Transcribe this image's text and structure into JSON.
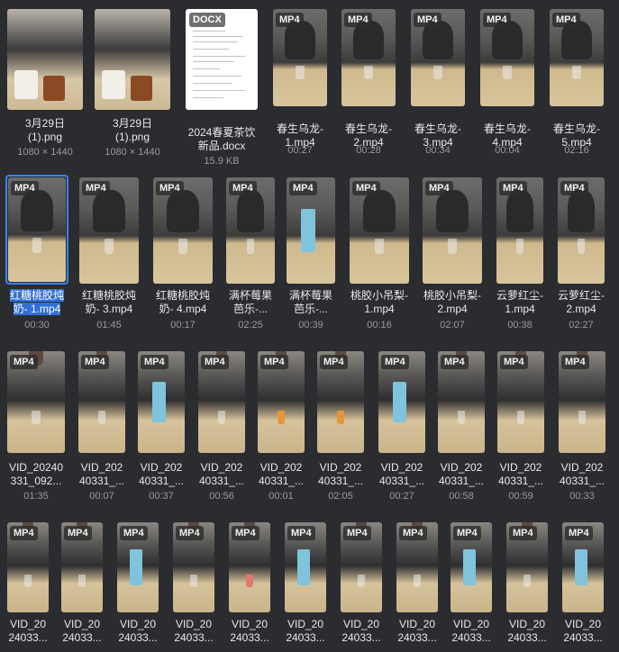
{
  "row1": [
    {
      "kind": "png",
      "name1": "3月29日",
      "name2": "(1).png",
      "meta": "1080 × 1440"
    },
    {
      "kind": "png",
      "name1": "3月29日",
      "name2": "(1).png",
      "meta": "1080 × 1440"
    },
    {
      "kind": "docx",
      "badge": "DOCX",
      "name1": "2024春夏茶饮",
      "name2": "新品.docx",
      "meta": "15.9 KB"
    },
    {
      "kind": "mp4",
      "badge": "MP4",
      "name1": "春生乌龙-",
      "name2": "1.mp4",
      "meta": "00:27"
    },
    {
      "kind": "mp4",
      "badge": "MP4",
      "name1": "春生乌龙-",
      "name2": "2.mp4",
      "meta": "00:28"
    },
    {
      "kind": "mp4",
      "badge": "MP4",
      "name1": "春生乌龙-",
      "name2": "3.mp4",
      "meta": "00:34"
    },
    {
      "kind": "mp4",
      "badge": "MP4",
      "name1": "春生乌龙-",
      "name2": "4.mp4",
      "meta": "00:04"
    },
    {
      "kind": "mp4",
      "badge": "MP4",
      "name1": "春生乌龙-",
      "name2": "5.mp4",
      "meta": "02:16"
    }
  ],
  "row2": [
    {
      "badge": "MP4",
      "name1": "红糖桃胶炖",
      "name2": "奶- 1.mp4",
      "meta": "00:30",
      "selected": true
    },
    {
      "badge": "MP4",
      "name1": "红糖桃胶炖",
      "name2": "奶- 3.mp4",
      "meta": "01:45"
    },
    {
      "badge": "MP4",
      "name1": "红糖桃胶炖",
      "name2": "奶- 4.mp4",
      "meta": "00:17"
    },
    {
      "badge": "MP4",
      "name1": "满杯莓果",
      "name2": "芭乐-...",
      "meta": "02:25"
    },
    {
      "badge": "MP4",
      "name1": "满杯莓果",
      "name2": "芭乐-...",
      "meta": "00:39"
    },
    {
      "badge": "MP4",
      "name1": "桃胶小吊梨-",
      "name2": "1.mp4",
      "meta": "00:16"
    },
    {
      "badge": "MP4",
      "name1": "桃胶小吊梨-",
      "name2": "2.mp4",
      "meta": "02:07"
    },
    {
      "badge": "MP4",
      "name1": "云萝红尘-",
      "name2": "1.mp4",
      "meta": "00:38"
    },
    {
      "badge": "MP4",
      "name1": "云萝红尘-",
      "name2": "2.mp4",
      "meta": "02:27"
    }
  ],
  "row3": [
    {
      "badge": "MP4",
      "name1": "VID_20240",
      "name2": "331_092...",
      "meta": "01:35"
    },
    {
      "badge": "MP4",
      "name1": "VID_202",
      "name2": "40331_...",
      "meta": "00:07"
    },
    {
      "badge": "MP4",
      "name1": "VID_202",
      "name2": "40331_...",
      "meta": "00:37"
    },
    {
      "badge": "MP4",
      "name1": "VID_202",
      "name2": "40331_...",
      "meta": "00:56"
    },
    {
      "badge": "MP4",
      "name1": "VID_202",
      "name2": "40331_...",
      "meta": "00:01"
    },
    {
      "badge": "MP4",
      "name1": "VID_202",
      "name2": "40331_...",
      "meta": "02:05"
    },
    {
      "badge": "MP4",
      "name1": "VID_202",
      "name2": "40331_...",
      "meta": "00:27"
    },
    {
      "badge": "MP4",
      "name1": "VID_202",
      "name2": "40331_...",
      "meta": "00:58"
    },
    {
      "badge": "MP4",
      "name1": "VID_202",
      "name2": "40331_...",
      "meta": "00:59"
    },
    {
      "badge": "MP4",
      "name1": "VID_202",
      "name2": "40331_...",
      "meta": "00:33"
    }
  ],
  "row4": [
    {
      "badge": "MP4",
      "name1": "VID_20",
      "name2": "24033..."
    },
    {
      "badge": "MP4",
      "name1": "VID_20",
      "name2": "24033..."
    },
    {
      "badge": "MP4",
      "name1": "VID_20",
      "name2": "24033..."
    },
    {
      "badge": "MP4",
      "name1": "VID_20",
      "name2": "24033..."
    },
    {
      "badge": "MP4",
      "name1": "VID_20",
      "name2": "24033..."
    },
    {
      "badge": "MP4",
      "name1": "VID_20",
      "name2": "24033..."
    },
    {
      "badge": "MP4",
      "name1": "VID_20",
      "name2": "24033..."
    },
    {
      "badge": "MP4",
      "name1": "VID_20",
      "name2": "24033..."
    },
    {
      "badge": "MP4",
      "name1": "VID_20",
      "name2": "24033..."
    },
    {
      "badge": "MP4",
      "name1": "VID_20",
      "name2": "24033..."
    },
    {
      "badge": "MP4",
      "name1": "VID_20",
      "name2": "24033..."
    }
  ]
}
